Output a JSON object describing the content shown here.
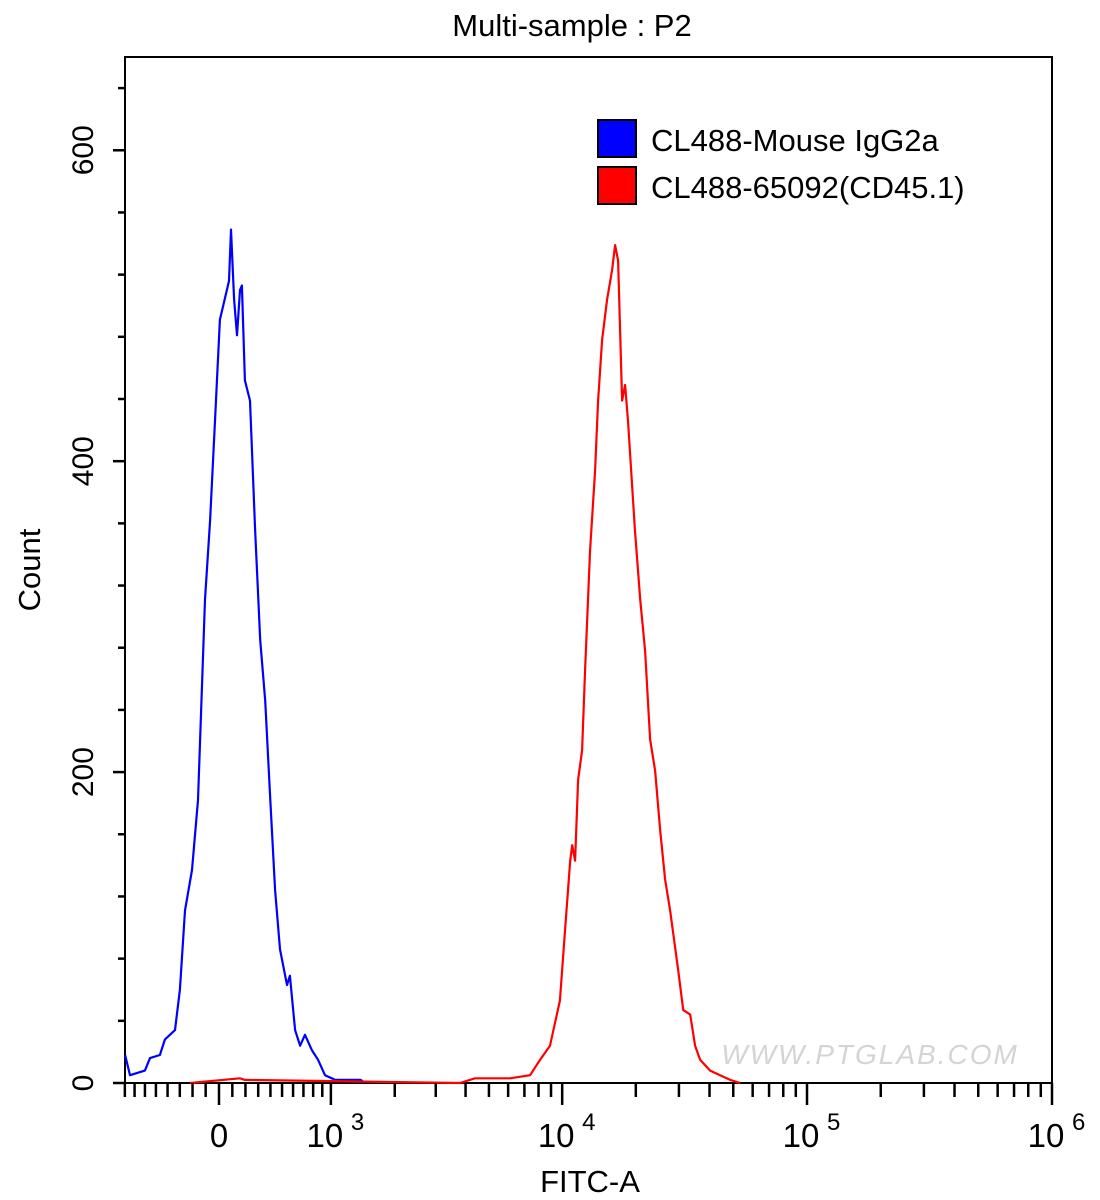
{
  "chart_data": {
    "type": "line",
    "subtype": "histogram-overlay",
    "title": "Multi-sample : P2",
    "xlabel": "FITC-A",
    "ylabel": "Count",
    "x_scale": "biexponential (arcsinh)",
    "xlim": [
      -800,
      1000000
    ],
    "ylim": [
      0,
      660
    ],
    "x_tick_labels": [
      {
        "value": 0,
        "base": "0",
        "exp": ""
      },
      {
        "value": 1000,
        "base": "10",
        "exp": "3"
      },
      {
        "value": 10000,
        "base": "10",
        "exp": "4"
      },
      {
        "value": 100000,
        "base": "10",
        "exp": "5"
      },
      {
        "value": 1000000,
        "base": "10",
        "exp": "6"
      }
    ],
    "y_ticks": [
      0,
      200,
      400,
      600
    ],
    "grid": false,
    "legend_position": "top-right",
    "watermark": "WWW.PTGLAB.COM",
    "series": [
      {
        "name": "CL488-Mouse IgG2a",
        "color": "#0000ff",
        "points": [
          [
            -797,
            18
          ],
          [
            -746,
            5
          ],
          [
            -600,
            8
          ],
          [
            -553,
            16
          ],
          [
            -465,
            18
          ],
          [
            -422,
            28
          ],
          [
            -339,
            34
          ],
          [
            -299,
            60
          ],
          [
            -259,
            111
          ],
          [
            -204,
            137
          ],
          [
            -158,
            182
          ],
          [
            -105,
            311
          ],
          [
            -67,
            362
          ],
          [
            -30,
            426
          ],
          [
            7,
            491
          ],
          [
            45,
            505
          ],
          [
            75,
            516
          ],
          [
            90,
            549
          ],
          [
            113,
            504
          ],
          [
            135,
            481
          ],
          [
            158,
            510
          ],
          [
            173,
            513
          ],
          [
            196,
            452
          ],
          [
            235,
            439
          ],
          [
            275,
            356
          ],
          [
            316,
            285
          ],
          [
            357,
            246
          ],
          [
            399,
            182
          ],
          [
            439,
            124
          ],
          [
            482,
            86
          ],
          [
            544,
            63
          ],
          [
            571,
            69
          ],
          [
            619,
            34
          ],
          [
            667,
            24
          ],
          [
            716,
            31
          ],
          [
            788,
            21
          ],
          [
            852,
            15
          ],
          [
            931,
            5
          ],
          [
            1053,
            2
          ],
          [
            1402,
            2
          ],
          [
            1475,
            0
          ]
        ]
      },
      {
        "name": "CL488-65092(CD45.1)",
        "color": "#ff0000",
        "points": [
          [
            -219,
            0
          ],
          [
            158,
            3
          ],
          [
            196,
            2
          ],
          [
            3789,
            0
          ],
          [
            4378,
            3
          ],
          [
            6113,
            3
          ],
          [
            7387,
            5
          ],
          [
            8120,
            15
          ],
          [
            8915,
            24
          ],
          [
            9790,
            53
          ],
          [
            10270,
            98
          ],
          [
            10780,
            143
          ],
          [
            10985,
            153
          ],
          [
            11296,
            143
          ],
          [
            11620,
            195
          ],
          [
            12070,
            214
          ],
          [
            12410,
            266
          ],
          [
            13010,
            343
          ],
          [
            13635,
            394
          ],
          [
            14025,
            439
          ],
          [
            14570,
            478
          ],
          [
            15270,
            504
          ],
          [
            16000,
            523
          ],
          [
            16460,
            539
          ],
          [
            16925,
            529
          ],
          [
            17575,
            439
          ],
          [
            18075,
            449
          ],
          [
            18590,
            426
          ],
          [
            19830,
            356
          ],
          [
            20850,
            311
          ],
          [
            21830,
            278
          ],
          [
            22880,
            221
          ],
          [
            23980,
            201
          ],
          [
            25140,
            163
          ],
          [
            26350,
            131
          ],
          [
            27620,
            111
          ],
          [
            29780,
            73
          ],
          [
            31220,
            47
          ],
          [
            33340,
            44
          ],
          [
            34940,
            24
          ],
          [
            36620,
            15
          ],
          [
            40230,
            8
          ],
          [
            44200,
            5
          ],
          [
            48580,
            2
          ],
          [
            53350,
            0
          ]
        ]
      }
    ]
  }
}
